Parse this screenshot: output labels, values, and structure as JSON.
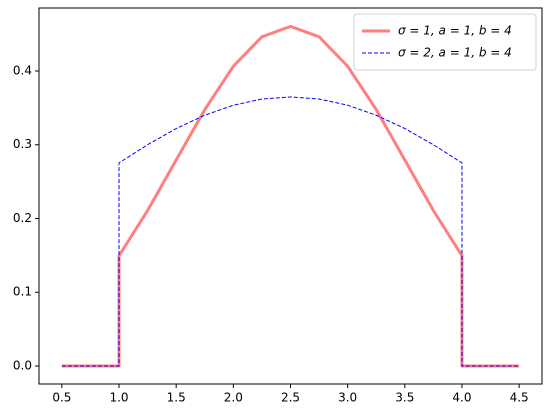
{
  "chart_data": {
    "type": "line",
    "x": [
      0.5,
      1.0,
      1.0,
      1.25,
      1.5,
      1.75,
      2.0,
      2.25,
      2.5,
      2.75,
      3.0,
      3.25,
      3.5,
      3.75,
      4.0,
      4.0,
      4.5
    ],
    "series": [
      {
        "name": "σ = 1, a = 1, b = 4",
        "color": "#ff7f7f",
        "style": "solid",
        "width": 3,
        "values": [
          0,
          0,
          0.1495,
          0.2108,
          0.2793,
          0.3476,
          0.4064,
          0.4463,
          0.4605,
          0.4463,
          0.4064,
          0.3476,
          0.2793,
          0.2108,
          0.1495,
          0,
          0
        ]
      },
      {
        "name": "σ = 2, a = 1, b = 4",
        "color": "#0000ff",
        "style": "dashed",
        "width": 1,
        "values": [
          0,
          0,
          0.2754,
          0.3,
          0.322,
          0.34,
          0.3536,
          0.362,
          0.3648,
          0.362,
          0.3536,
          0.34,
          0.322,
          0.3,
          0.2754,
          0,
          0
        ]
      }
    ],
    "xlim": [
      0.3,
      4.7
    ],
    "xticks": [
      0.5,
      {
        "value": 1,
        "label": "1.0"
      },
      1.5,
      {
        "value": 2,
        "label": "2.0"
      },
      2.5,
      {
        "value": 3,
        "label": "3.0"
      },
      3.5,
      {
        "value": 4,
        "label": "4.0"
      },
      4.5
    ],
    "ylim": [
      -0.0244,
      0.4854
    ],
    "yticks": [
      {
        "value": 0,
        "label": "0.0"
      },
      0.1,
      0.2,
      0.3,
      0.4
    ],
    "grid": false,
    "legend": "upper right"
  }
}
